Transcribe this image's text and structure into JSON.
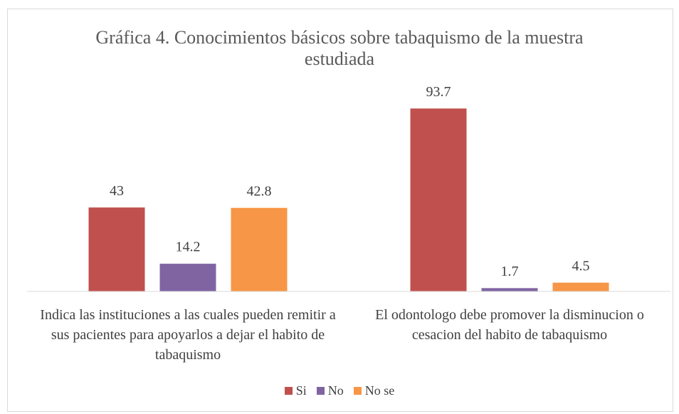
{
  "chart_data": {
    "type": "bar",
    "title": "Gráfica 4. Conocimientos básicos sobre tabaquismo de la muestra estudiada",
    "categories": [
      "Indica las instituciones a las cuales pueden remitir a sus pacientes para apoyarlos a dejar el habito de tabaquismo",
      "El odontologo debe promover la disminucion o cesacion del habito de tabaquismo"
    ],
    "series": [
      {
        "name": "Si",
        "color": "#c0504d",
        "values": [
          43,
          93.7
        ]
      },
      {
        "name": "No",
        "color": "#8064a2",
        "values": [
          14.2,
          1.7
        ]
      },
      {
        "name": "No se",
        "color": "#f79646",
        "values": [
          42.8,
          4.5
        ]
      }
    ],
    "ylim": [
      0,
      100
    ],
    "legend": "bottom"
  }
}
